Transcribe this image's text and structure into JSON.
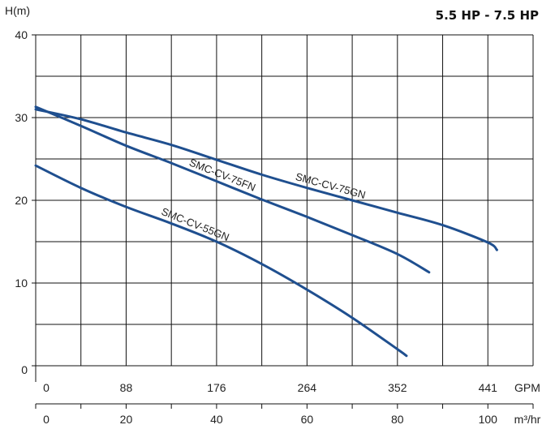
{
  "chart_data": {
    "type": "line",
    "title": "5.5 HP - 7.5 HP",
    "ylabel": "H(m)",
    "ylim": [
      0,
      40
    ],
    "yticks": [
      "0",
      "10",
      "20",
      "30",
      "40"
    ],
    "gpm_axis": {
      "label": "GPM",
      "ticks": [
        "0",
        "88",
        "176",
        "264",
        "352",
        "441"
      ]
    },
    "m3_axis": {
      "label": "m³/hr",
      "ticks": [
        "0",
        "20",
        "40",
        "60",
        "80",
        "100"
      ]
    },
    "xlim_m3": [
      0,
      110
    ],
    "grid": true,
    "series": [
      {
        "name": "SMC-CV-75GN",
        "x": [
          0,
          10,
          20,
          30,
          40,
          50,
          60,
          70,
          80,
          90,
          100,
          102
        ],
        "y": [
          31.0,
          29.8,
          28.2,
          26.7,
          24.9,
          23.1,
          21.5,
          20.0,
          18.5,
          17.0,
          14.9,
          14.0
        ],
        "color": "#1f4f8f"
      },
      {
        "name": "SMC-CV-75FN",
        "x": [
          0,
          10,
          20,
          30,
          40,
          50,
          60,
          70,
          80,
          87
        ],
        "y": [
          31.3,
          29.0,
          26.6,
          24.5,
          22.3,
          20.1,
          18.0,
          15.8,
          13.5,
          11.3
        ],
        "color": "#1f4f8f"
      },
      {
        "name": "SMC-CV-55GN",
        "x": [
          0,
          10,
          20,
          30,
          40,
          50,
          60,
          70,
          80,
          82
        ],
        "y": [
          24.2,
          21.5,
          19.2,
          17.2,
          15.0,
          12.3,
          9.2,
          5.8,
          2.0,
          1.2
        ],
        "color": "#1f4f8f"
      }
    ]
  }
}
